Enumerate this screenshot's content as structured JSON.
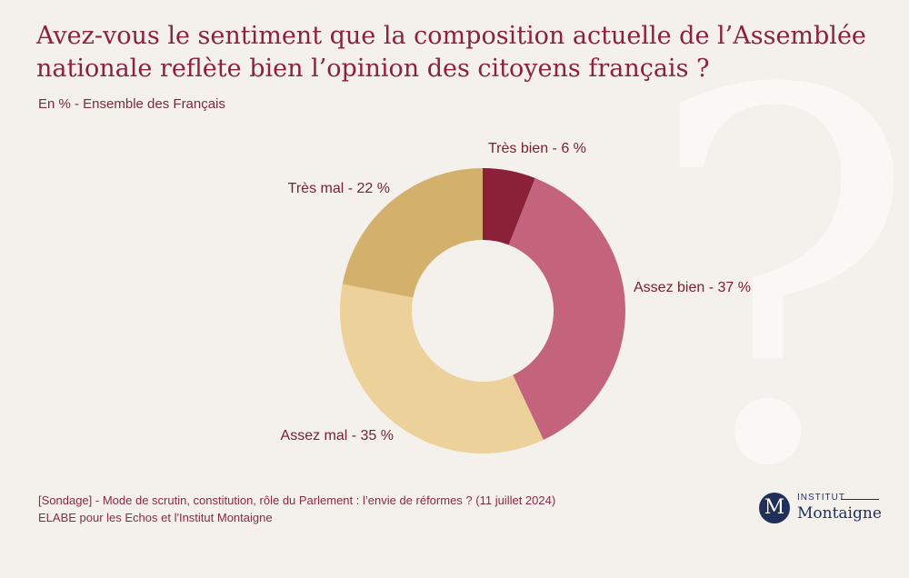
{
  "title": "Avez-vous le sentiment que la composition actuelle de l’Assemblée nationale reflète bien l’opinion des citoyens français ?",
  "subtitle": "En % - Ensemble des Français",
  "background_mark": "?",
  "chart_data": {
    "type": "pie",
    "title": "Avez-vous le sentiment que la composition actuelle de l’Assemblée nationale reflète bien l’opinion des citoyens français ?",
    "subtitle": "En % - Ensemble des Français",
    "donut": true,
    "slices": [
      {
        "label": "Très bien - 6 %",
        "category": "Très bien",
        "value": 6,
        "color": "#8a2139"
      },
      {
        "label": "Assez bien - 37 %",
        "category": "Assez bien",
        "value": 37,
        "color": "#c4647c"
      },
      {
        "label": "Assez mal - 35 %",
        "category": "Assez mal",
        "value": 35,
        "color": "#edd19a"
      },
      {
        "label": "Très mal - 22 %",
        "category": "Très mal",
        "value": 22,
        "color": "#d3b06c"
      }
    ]
  },
  "footer": {
    "line1": "[Sondage] - Mode de scrutin, constitution, rôle du Parlement : l’envie de réformes ? (11 juillet 2024)",
    "line2": "ELABE pour les Echos et l'Institut Montaigne"
  },
  "logo": {
    "letter": "M",
    "top": "INSTITUT",
    "bottom": "Montaigne"
  }
}
